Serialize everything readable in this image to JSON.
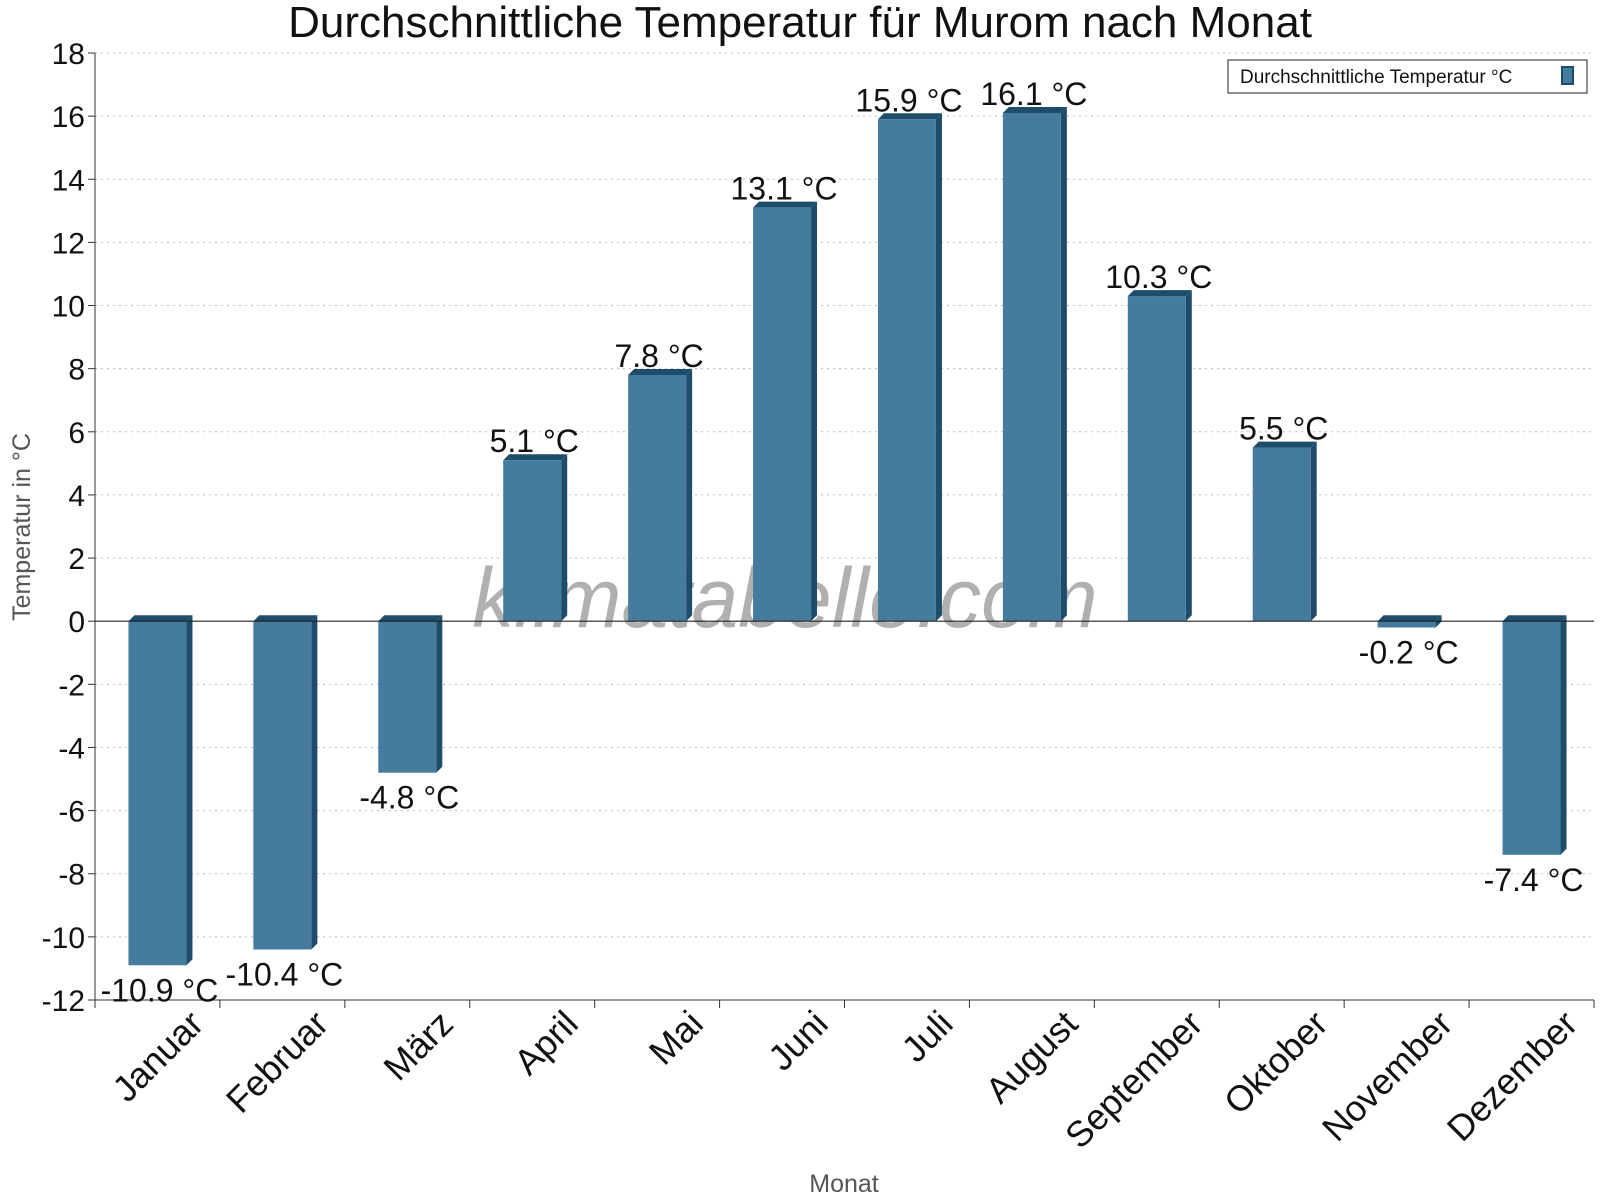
{
  "chart_data": {
    "type": "bar",
    "title": "Durchschnittliche Temperatur für Murom nach Monat",
    "xlabel": "Monat",
    "ylabel": "Temperatur in °C",
    "categories": [
      "Januar",
      "Februar",
      "März",
      "April",
      "Mai",
      "Juni",
      "Juli",
      "August",
      "September",
      "Oktober",
      "November",
      "Dezember"
    ],
    "series": [
      {
        "name": "Durchschnittliche Temperatur °C",
        "values": [
          -10.9,
          -10.4,
          -4.8,
          5.1,
          7.8,
          13.1,
          15.9,
          16.1,
          10.3,
          5.5,
          -0.2,
          -7.4
        ],
        "labels": [
          "-10.9 °C",
          "-10.4 °C",
          "-4.8 °C",
          "5.1 °C",
          "7.8 °C",
          "13.1 °C",
          "15.9 °C",
          "16.1 °C",
          "10.3 °C",
          "5.5 °C",
          "-0.2 °C",
          "-7.4 °C"
        ]
      }
    ],
    "ylim": [
      -12,
      18
    ],
    "yticks": [
      "-12",
      "-10",
      "-8",
      "-6",
      "-4",
      "-2",
      "0",
      "2",
      "4",
      "6",
      "8",
      "10",
      "12",
      "14",
      "16",
      "18"
    ],
    "grid": true,
    "legend_position": "top-right",
    "colors": {
      "bar": "#457b9d",
      "bar_side": "#1d4d6b",
      "bar_top": "#1d4d6b"
    },
    "watermark": "klimatabelle.com"
  }
}
